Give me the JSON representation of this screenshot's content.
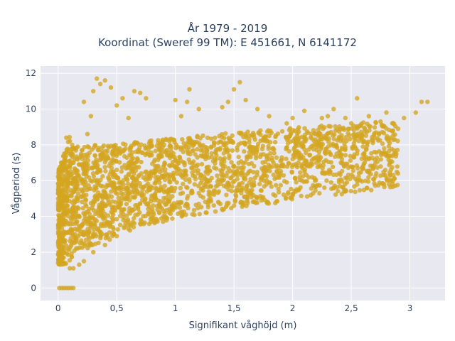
{
  "chart_data": {
    "type": "scatter",
    "title_line1": "År 1979 - 2019",
    "title_line2": "Koordinat (Sweref 99 TM): E 451661, N 6141172",
    "xlabel": "Signifikant våghöjd (m)",
    "ylabel": "Vågperiod (s)",
    "xlim": [
      -0.15,
      3.3
    ],
    "ylim": [
      -0.7,
      12.4
    ],
    "x_ticks": [
      {
        "value": 0,
        "label": "0"
      },
      {
        "value": 0.5,
        "label": "0,5"
      },
      {
        "value": 1,
        "label": "1"
      },
      {
        "value": 1.5,
        "label": "1,5"
      },
      {
        "value": 2,
        "label": "2"
      },
      {
        "value": 2.5,
        "label": "2,5"
      },
      {
        "value": 3,
        "label": "3"
      }
    ],
    "y_ticks": [
      {
        "value": 0,
        "label": "0"
      },
      {
        "value": 2,
        "label": "2"
      },
      {
        "value": 4,
        "label": "4"
      },
      {
        "value": 6,
        "label": "6"
      },
      {
        "value": 8,
        "label": "8"
      },
      {
        "value": 10,
        "label": "10"
      },
      {
        "value": 12,
        "label": "12"
      }
    ],
    "grid": true,
    "marker_color": "#d4a520",
    "plot_background": "#e8e8f0",
    "points": [
      [
        0.01,
        0.0
      ],
      [
        0.03,
        0.0
      ],
      [
        0.05,
        0.0
      ],
      [
        0.07,
        0.0
      ],
      [
        0.09,
        0.0
      ],
      [
        0.11,
        0.0
      ],
      [
        0.13,
        0.0
      ],
      [
        0.0,
        1.4
      ],
      [
        0.02,
        1.8
      ],
      [
        0.04,
        2.3
      ],
      [
        0.06,
        3.1
      ],
      [
        0.05,
        4.2
      ],
      [
        0.03,
        5.0
      ],
      [
        0.05,
        6.0
      ],
      [
        0.04,
        6.6
      ],
      [
        0.08,
        5.7
      ],
      [
        0.1,
        7.1
      ],
      [
        0.07,
        8.4
      ],
      [
        0.12,
        8.0
      ],
      [
        0.1,
        1.1
      ],
      [
        0.13,
        1.1
      ],
      [
        0.18,
        1.3
      ],
      [
        0.22,
        1.5
      ],
      [
        0.15,
        3.6
      ],
      [
        0.2,
        5.1
      ],
      [
        0.18,
        6.9
      ],
      [
        0.25,
        8.6
      ],
      [
        0.22,
        10.4
      ],
      [
        0.28,
        9.6
      ],
      [
        0.3,
        11.0
      ],
      [
        0.33,
        11.7
      ],
      [
        0.36,
        11.4
      ],
      [
        0.4,
        11.6
      ],
      [
        0.45,
        11.2
      ],
      [
        0.3,
        2.0
      ],
      [
        0.4,
        2.4
      ],
      [
        0.5,
        2.9
      ],
      [
        0.6,
        3.3
      ],
      [
        0.7,
        3.6
      ],
      [
        0.35,
        4.5
      ],
      [
        0.45,
        6.5
      ],
      [
        0.5,
        10.2
      ],
      [
        0.55,
        10.6
      ],
      [
        0.6,
        9.5
      ],
      [
        0.65,
        11.0
      ],
      [
        0.7,
        10.9
      ],
      [
        0.75,
        10.6
      ],
      [
        0.8,
        3.9
      ],
      [
        0.9,
        4.3
      ],
      [
        1.0,
        4.6
      ],
      [
        1.1,
        5.0
      ],
      [
        0.85,
        6.2
      ],
      [
        0.95,
        8.2
      ],
      [
        1.0,
        10.5
      ],
      [
        1.05,
        9.6
      ],
      [
        1.1,
        10.4
      ],
      [
        1.12,
        11.1
      ],
      [
        1.2,
        10.0
      ],
      [
        1.2,
        5.3
      ],
      [
        1.3,
        5.7
      ],
      [
        1.4,
        6.0
      ],
      [
        1.35,
        7.4
      ],
      [
        1.4,
        10.1
      ],
      [
        1.45,
        10.4
      ],
      [
        1.5,
        11.1
      ],
      [
        1.55,
        11.5
      ],
      [
        1.6,
        10.5
      ],
      [
        1.7,
        10.0
      ],
      [
        1.6,
        6.3
      ],
      [
        1.75,
        6.6
      ],
      [
        1.8,
        9.6
      ],
      [
        1.9,
        6.8
      ],
      [
        1.95,
        9.2
      ],
      [
        2.0,
        9.5
      ],
      [
        2.05,
        7.0
      ],
      [
        2.1,
        9.9
      ],
      [
        2.2,
        7.3
      ],
      [
        2.25,
        9.5
      ],
      [
        2.3,
        9.6
      ],
      [
        2.35,
        10.0
      ],
      [
        2.4,
        7.6
      ],
      [
        2.45,
        9.5
      ],
      [
        2.5,
        9.2
      ],
      [
        2.55,
        10.6
      ],
      [
        2.6,
        7.9
      ],
      [
        2.65,
        9.6
      ],
      [
        2.7,
        8.4
      ],
      [
        2.75,
        9.3
      ],
      [
        2.8,
        9.8
      ],
      [
        2.85,
        9.2
      ],
      [
        2.9,
        8.9
      ],
      [
        2.95,
        9.5
      ],
      [
        3.05,
        9.8
      ],
      [
        3.1,
        10.4
      ],
      [
        3.15,
        10.4
      ]
    ]
  }
}
